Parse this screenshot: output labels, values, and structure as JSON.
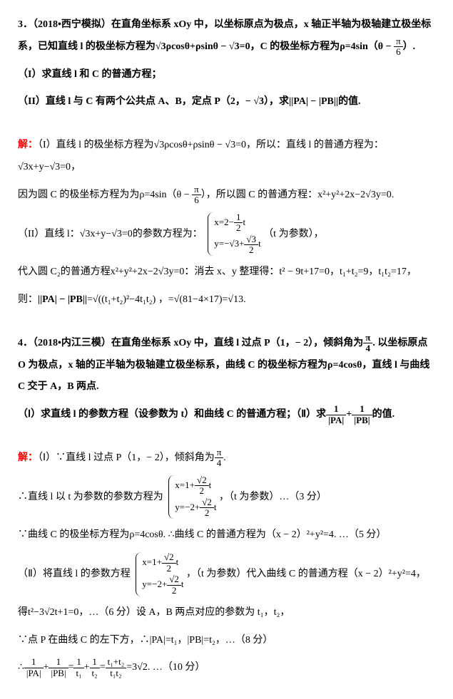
{
  "colors": {
    "text": "#000000",
    "answer_label": "#ff0000",
    "bg": "#ffffff"
  },
  "typography": {
    "base_fontsize": 14,
    "line_height": 2.2,
    "font_family": "SimSun"
  },
  "problem3": {
    "header_prefix": "3．（2018•西宁模拟）在直角坐标系 xOy 中，以坐标原点为极点，x 轴正半轴为极轴建立极坐标系，已知直线 l 的极坐标方程为",
    "polar_eq_line": "√3ρcosθ+ρsinθ − √3=0",
    "header_mid": "，C 的极坐标方程为ρ=4sin（θ − ",
    "frac_pi6_num": "π",
    "frac_pi6_den": "6",
    "header_end": "）.",
    "q1": "（I）求直线 l 和 C 的普通方程；",
    "q2_a": "（II）直线 l 与 C 有两个公共点 A、B，定点 P（2，− √3），求",
    "q2_b": "||PA| − |PB||",
    "q2_c": "的值.",
    "ans_label": "解：",
    "a1_a": "（I）直线 l 的极坐标方程为√3ρcosθ+ρsinθ − √3=0，所以：直线 l 的普通方程为：",
    "a1_b": "√3x+y−√3=0",
    "a1_c": "，",
    "a2_a": "因为圆 C 的极坐标方程为为ρ=4sin（θ − ",
    "a2_b": "），所以圆 C 的普通方程：",
    "a2_c": "x²+y²+2x−2√3y=0",
    "a3_a": "（II）直线 l：",
    "a3_b": "√3x+y−√3=0",
    "a3_c": "的参数方程为：",
    "param1_line1": "x=2−(1/2)t",
    "param1_line2": "y=−√3+(√3/2)t",
    "a3_d": "（t 为参数），",
    "a4_a": "代入圆 C₂的普通方程",
    "a4_b": "x²+y²+2x−2√3y=0",
    "a4_c": "消去 x、y 整理得：t² − 9t+17=0，t₁+t₂=9，t₁t₂=17，",
    "a5_a": "则：",
    "a5_b": "||PA| − |PB||",
    "a5_c": "=",
    "a5_sqrt": "√((t₁+t₂)²−4t₁t₂)",
    "a5_d": " ，=√(81−4×17)=√13."
  },
  "problem4": {
    "header_a": "4．（2018•内江三模）在直角坐标系 xOy 中，直线 l 过点 P（1，− 2），倾斜角为",
    "frac_pi4_num": "π",
    "frac_pi4_den": "4",
    "header_b": ". 以坐标原点 O 为极点，x 轴的正半轴为极轴建立极坐标系，曲线 C 的极坐标方程为ρ=4cosθ，直线 l 与曲线 C 交于 A，B 两点.",
    "q1_a": "（Ⅰ）求直线 l 的参数方程（设参数为 t）和曲线 C 的普通方程；（Ⅱ）求",
    "q1_frac1_num": "1",
    "q1_frac1_den": "|PA|",
    "q1_plus": "+",
    "q1_frac2_num": "1",
    "q1_frac2_den": "|PB|",
    "q1_b": "的值.",
    "ans_label": "解：",
    "a1_a": "（Ⅰ）∵直线 l 过点 P（1，− 2），倾斜角为",
    "a1_b": ".",
    "a2_a": "∴直线 l 以 t 为参数的参数方程为",
    "param2_line1": "x=1+(√2/2)t",
    "param2_line2": "y=−2+(√2/2)t",
    "a2_b": "，（t 为参数）…（3 分）",
    "a3": "∵曲线 C 的极坐标方程为ρ=4cosθ. ∴曲线 C 的普通方程为（x − 2）²+y²=4. …（5 分）",
    "a4_a": "（Ⅱ）将直线 l 的参数方程",
    "a4_b": "，（t 为参数）代入曲线 C 的普通方程（x − 2）²+y²=4，",
    "a5_a": "得",
    "a5_b": "t²−3√2t+1=0",
    "a5_c": "，…（6 分）设 A，B 两点对应的参数为 t₁，t₂，",
    "a6": "∵点 P 在曲线 C 的左下方，∴|PA|=t₁，|PB|=t₂，…（8 分）",
    "a7_a": "∴",
    "a7_eq": "=",
    "a7_frac3_num": "1",
    "a7_frac3_den": "t₁",
    "a7_frac4_num": "1",
    "a7_frac4_den": "t₂",
    "a7_frac5_num": "t₁+t₂",
    "a7_frac5_den": "t₁t₂",
    "a7_result": "=3√2. …（10 分）"
  }
}
